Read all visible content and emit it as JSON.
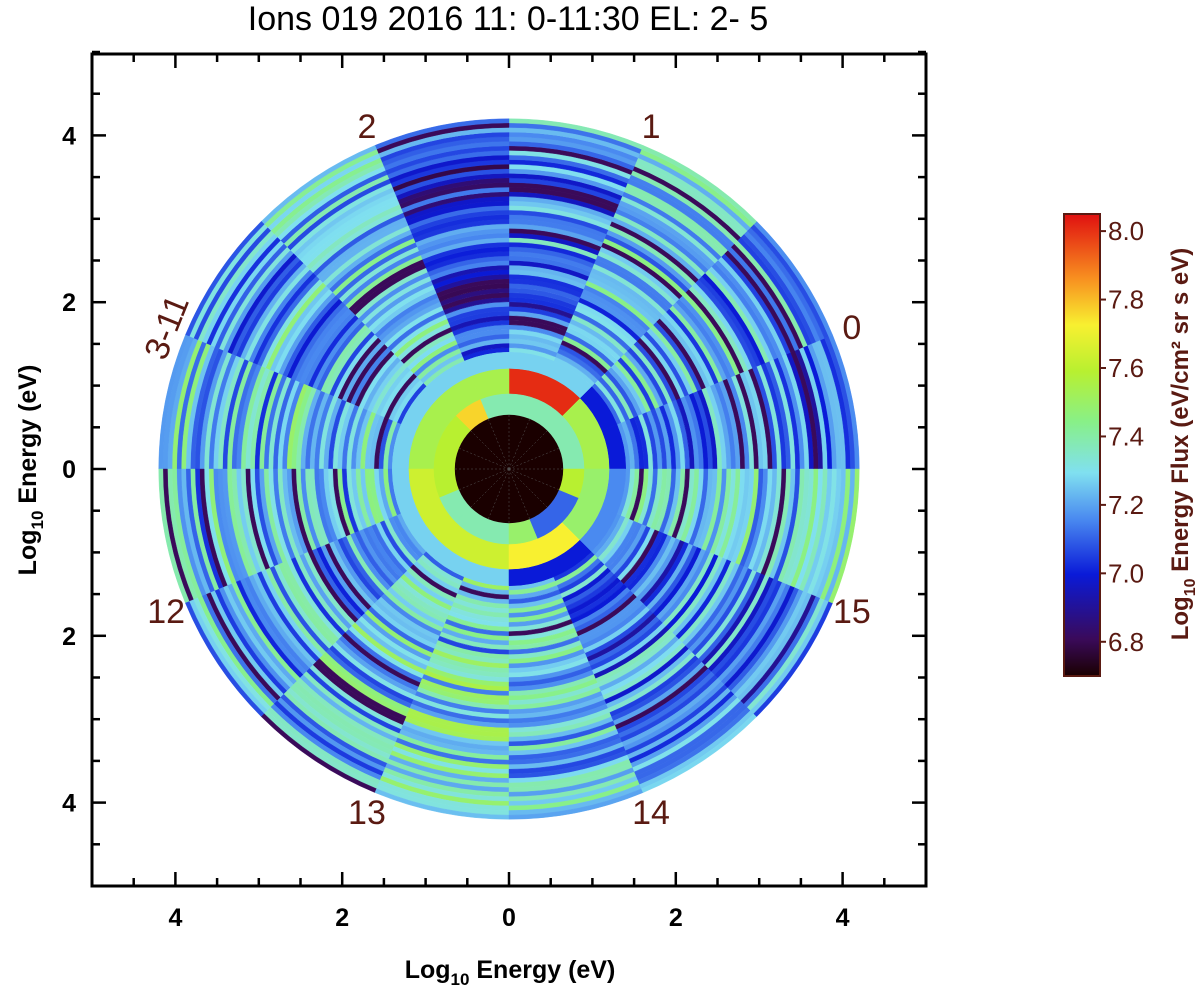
{
  "chart_data": {
    "type": "heatmap",
    "subtype": "polar-energy-angle",
    "title": "Ions 019 2016 11: 0-11:30 EL: 2- 5",
    "xlabel": "Log10 Energy (eV)",
    "ylabel": "Log10 Energy (eV)",
    "xlabel_parts": {
      "pre": "Log",
      "sub": "10",
      "post": " Energy (eV)"
    },
    "ylabel_parts": {
      "pre": "Log",
      "sub": "10",
      "post": " Energy (eV)"
    },
    "x_ticks": [
      "4",
      "2",
      "0",
      "2",
      "4"
    ],
    "y_ticks": [
      "4",
      "2",
      "0",
      "2",
      "4"
    ],
    "xlim": [
      -5,
      5
    ],
    "ylim": [
      -5,
      5
    ],
    "radial_max": 4.2,
    "center_radius": 0.65,
    "sector_labels": [
      {
        "text": "1",
        "angle_deg": 67.5
      },
      {
        "text": "2",
        "angle_deg": 112.5
      },
      {
        "text": "0",
        "angle_deg": 22.5
      },
      {
        "text": "3-11",
        "angle_deg": 157.5
      },
      {
        "text": "12",
        "angle_deg": 202.5
      },
      {
        "text": "13",
        "angle_deg": 247.5
      },
      {
        "text": "14",
        "angle_deg": 292.5
      },
      {
        "text": "15",
        "angle_deg": 337.5
      }
    ],
    "colorbar": {
      "label": "Log10 Energy Flux (eV/cm² sr s eV)",
      "label_parts": {
        "pre": "Log",
        "sub": "10",
        "post": " Energy Flux (eV/cm² sr s eV)"
      },
      "range": [
        6.7,
        8.05
      ],
      "ticks": [
        "8.0",
        "7.8",
        "7.6",
        "7.4",
        "7.2",
        "7.0",
        "6.8"
      ],
      "tick_values": [
        8.0,
        7.8,
        7.6,
        7.4,
        7.2,
        7.0,
        6.8
      ]
    },
    "center_value": 6.7,
    "inner_rings": [
      {
        "r_in": 0.65,
        "r_out": 0.9,
        "values": [
          7.3,
          7.3,
          7.3,
          7.3,
          7.3,
          7.7,
          7.5,
          7.5,
          7.5,
          7.3,
          7.3,
          7.3,
          7.4,
          7.05,
          7.05,
          7.5
        ]
      },
      {
        "r_in": 0.9,
        "r_out": 1.2,
        "values": [
          7.45,
          7.45,
          8.0,
          8.0,
          7.45,
          7.45,
          7.45,
          7.45,
          7.55,
          7.55,
          7.55,
          7.55,
          7.65,
          7.65,
          7.4,
          7.4
        ]
      },
      {
        "r_in": 1.2,
        "r_out": 1.4,
        "values": [
          6.95,
          6.95,
          7.2,
          7.2,
          7.2,
          7.2,
          7.2,
          7.2,
          7.2,
          7.2,
          7.2,
          7.2,
          6.95,
          6.95,
          7.1,
          7.1
        ]
      }
    ],
    "outer_ring_values": {
      "sector_base": [
        7.1,
        7.15,
        7.2,
        7.1,
        7.0,
        7.2,
        7.15,
        7.2,
        7.2,
        7.15,
        7.2,
        7.25,
        7.2,
        7.1,
        7.1,
        7.2
      ],
      "ring_width": 0.055
    }
  }
}
